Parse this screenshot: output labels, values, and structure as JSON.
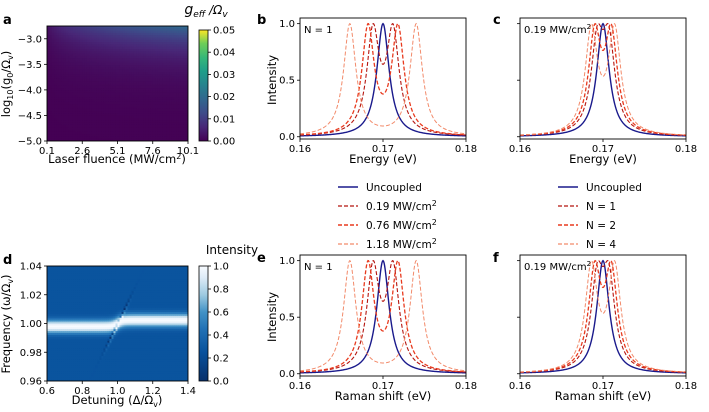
{
  "colors": {
    "uncoupled": "#1a1a8c",
    "dark_red": "#b5150f",
    "red": "#e83a1e",
    "light_red": "#f28a6a"
  },
  "panel_a": {
    "label": "a",
    "xlabel": "Laser fluence (MW/cm",
    "xlabel_sup": "2",
    "xlabel_end": ")",
    "ylabel_main": "log",
    "ylabel_sub": "10",
    "ylabel_rest": "(g",
    "ylabel_sub2": "0",
    "ylabel_rest2": "/Ω",
    "ylabel_sub3": "v",
    "ylabel_end": ")",
    "xticks": [
      "0.1",
      "2.6",
      "5.1",
      "7.6",
      "10.1"
    ],
    "yticks": [
      "−3.0",
      "−3.5",
      "−4.0",
      "−4.5",
      "−5.0"
    ],
    "colorbar_title_main": "g",
    "colorbar_title_sub": "eff",
    "colorbar_title_rest": " /Ω",
    "colorbar_title_sub2": "v",
    "colorbar_ticks": [
      "0.05",
      "0.04",
      "0.03",
      "0.02",
      "0.01",
      "0.00"
    ]
  },
  "panel_b": {
    "label": "b",
    "inset": "N = 1",
    "ylabel": "Intensity",
    "xlabel": "Energy (eV)",
    "xticks": [
      "0.16",
      "0.17",
      "0.18"
    ],
    "yticks": [
      "1.0",
      "0.5",
      "0.0"
    ]
  },
  "panel_c": {
    "label": "c",
    "inset_main": "0.19 MW/cm",
    "inset_sup": "2",
    "xlabel": "Energy (eV)",
    "xticks": [
      "0.16",
      "0.17",
      "0.18"
    ]
  },
  "panel_d": {
    "label": "d",
    "xlabel_main": "Detuning (Δ/Ω",
    "xlabel_sub": "v",
    "xlabel_end": ")",
    "ylabel_main": "Frequency (ω/Ω",
    "ylabel_sub": "v",
    "ylabel_end": ")",
    "xticks": [
      "0.6",
      "0.8",
      "1.0",
      "1.2",
      "1.4"
    ],
    "yticks": [
      "1.04",
      "1.02",
      "1.00",
      "0.98",
      "0.96"
    ],
    "colorbar_title": "Intensity",
    "colorbar_ticks": [
      "1.0",
      "0.8",
      "0.6",
      "0.4",
      "0.2",
      "0.0"
    ]
  },
  "panel_e": {
    "label": "e",
    "inset": "N = 1",
    "ylabel": "Intensity",
    "xlabel": "Raman shift (eV)",
    "xticks": [
      "0.16",
      "0.17",
      "0.18"
    ],
    "yticks": [
      "1.0",
      "0.5",
      "0.0"
    ]
  },
  "panel_f": {
    "label": "f",
    "inset_main": "0.19 MW/cm",
    "inset_sup": "2",
    "xlabel": "Raman shift (eV)",
    "xticks": [
      "0.16",
      "0.17",
      "0.18"
    ]
  },
  "legend_left": {
    "items": [
      {
        "label": "Uncoupled",
        "sup": "",
        "style": "uncoupled"
      },
      {
        "label": "0.19 MW/cm",
        "sup": "2",
        "style": "dark_red"
      },
      {
        "label": "0.76 MW/cm",
        "sup": "2",
        "style": "red"
      },
      {
        "label": "1.18 MW/cm",
        "sup": "2",
        "style": "light_red"
      }
    ]
  },
  "legend_right": {
    "items": [
      {
        "label": "Uncoupled",
        "style": "uncoupled"
      },
      {
        "label": "N = 1",
        "style": "dark_red"
      },
      {
        "label": "N = 2",
        "style": "red"
      },
      {
        "label": "N = 4",
        "style": "light_red"
      }
    ]
  },
  "chart_data": [
    {
      "id": "a",
      "type": "heatmap",
      "title": "",
      "xlabel": "Laser fluence (MW/cm²)",
      "ylabel": "log10(g0/Ωv)",
      "xlim": [
        0.1,
        10.1
      ],
      "ylim": [
        -5.0,
        -2.75
      ],
      "xticks": [
        0.1,
        2.6,
        5.1,
        7.6,
        10.1
      ],
      "yticks": [
        -3.0,
        -3.5,
        -4.0,
        -4.5,
        -5.0
      ],
      "colorbar": {
        "label": "geff/Ωv",
        "range": [
          0.0,
          0.05
        ],
        "colormap": "viridis"
      },
      "model": "geff = min(0.05, 10^log10(g0/Ωv) * sqrt(fluence) * 3.5)"
    },
    {
      "id": "b",
      "type": "line",
      "xlabel": "Energy (eV)",
      "ylabel": "Intensity",
      "xlim": [
        0.16,
        0.18
      ],
      "ylim": [
        -0.02,
        1.05
      ],
      "annotation": "N = 1",
      "series": [
        {
          "name": "Uncoupled",
          "style": "uncoupled",
          "peaks": [
            0.17
          ],
          "width": 0.0009
        },
        {
          "name": "0.19 MW/cm²",
          "style": "dark_red",
          "peaks": [
            0.1688,
            0.1712
          ],
          "width": 0.0009
        },
        {
          "name": "0.76 MW/cm²",
          "style": "red",
          "peaks": [
            0.1682,
            0.1718
          ],
          "width": 0.0009
        },
        {
          "name": "1.18 MW/cm²",
          "style": "light_red",
          "peaks": [
            0.166,
            0.174
          ],
          "width": 0.0009
        }
      ]
    },
    {
      "id": "c",
      "type": "line",
      "xlabel": "Energy (eV)",
      "ylabel": "",
      "xlim": [
        0.16,
        0.18
      ],
      "ylim": [
        -0.02,
        1.05
      ],
      "annotation": "0.19 MW/cm²",
      "series": [
        {
          "name": "Uncoupled",
          "style": "uncoupled",
          "peaks": [
            0.17
          ],
          "width": 0.0009
        },
        {
          "name": "N = 1",
          "style": "dark_red",
          "peaks": [
            0.1693,
            0.1707
          ],
          "width": 0.0009
        },
        {
          "name": "N = 2",
          "style": "red",
          "peaks": [
            0.169,
            0.171
          ],
          "width": 0.0009
        },
        {
          "name": "N = 4",
          "style": "light_red",
          "peaks": [
            0.1686,
            0.1714
          ],
          "width": 0.0009
        }
      ]
    },
    {
      "id": "d",
      "type": "heatmap",
      "xlabel": "Detuning (Δ/Ωv)",
      "ylabel": "Frequency (ω/Ωv)",
      "xlim": [
        0.6,
        1.4
      ],
      "ylim": [
        0.96,
        1.04
      ],
      "xticks": [
        0.6,
        0.8,
        1.0,
        1.2,
        1.4
      ],
      "yticks": [
        1.04,
        1.02,
        1.0,
        0.98,
        0.96
      ],
      "colorbar": {
        "label": "Intensity",
        "range": [
          0.0,
          1.0
        ],
        "colormap": "Blues_r"
      },
      "model": "anticrossing of cavity mode near ω/Ωv = 1.00 with bright band, crossing at Δ/Ωv = 1.0"
    },
    {
      "id": "e",
      "type": "line",
      "xlabel": "Raman shift (eV)",
      "ylabel": "Intensity",
      "xlim": [
        0.16,
        0.18
      ],
      "ylim": [
        -0.02,
        1.05
      ],
      "annotation": "N = 1",
      "series": [
        {
          "name": "Uncoupled",
          "style": "uncoupled",
          "peaks": [
            0.17
          ],
          "width": 0.0009
        },
        {
          "name": "0.19 MW/cm²",
          "style": "dark_red",
          "peaks": [
            0.1688,
            0.1712
          ],
          "width": 0.0009
        },
        {
          "name": "0.76 MW/cm²",
          "style": "red",
          "peaks": [
            0.1682,
            0.1718
          ],
          "width": 0.0009
        },
        {
          "name": "1.18 MW/cm²",
          "style": "light_red",
          "peaks": [
            0.166,
            0.174
          ],
          "width": 0.0009
        }
      ]
    },
    {
      "id": "f",
      "type": "line",
      "xlabel": "Raman shift (eV)",
      "ylabel": "",
      "xlim": [
        0.16,
        0.18
      ],
      "ylim": [
        -0.02,
        1.05
      ],
      "annotation": "0.19 MW/cm²",
      "series": [
        {
          "name": "Uncoupled",
          "style": "uncoupled",
          "peaks": [
            0.17
          ],
          "width": 0.0009
        },
        {
          "name": "N = 1",
          "style": "dark_red",
          "peaks": [
            0.1693,
            0.1707
          ],
          "width": 0.0009
        },
        {
          "name": "N = 2",
          "style": "red",
          "peaks": [
            0.169,
            0.171
          ],
          "width": 0.0009
        },
        {
          "name": "N = 4",
          "style": "light_red",
          "peaks": [
            0.1686,
            0.1714
          ],
          "width": 0.0009
        }
      ]
    }
  ]
}
